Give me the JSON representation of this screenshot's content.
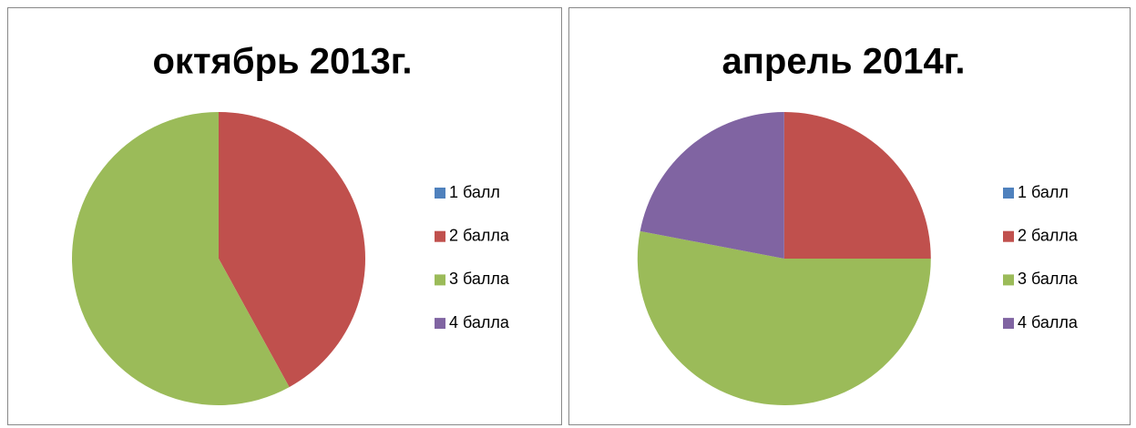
{
  "chart_data": [
    {
      "type": "pie",
      "title": "октябрь 2013г.",
      "categories": [
        "1 балл",
        "2 балла",
        "3 балла",
        "4 балла"
      ],
      "values": [
        0,
        42,
        58,
        0
      ],
      "colors": [
        "#4f81bd",
        "#c0504d",
        "#9bbb59",
        "#8064a2"
      ],
      "legend": "right"
    },
    {
      "type": "pie",
      "title": "апрель 2014г.",
      "categories": [
        "1 балл",
        "2 балла",
        "3 балла",
        "4 балла"
      ],
      "values": [
        0,
        25,
        53,
        22
      ],
      "colors": [
        "#4f81bd",
        "#c0504d",
        "#9bbb59",
        "#8064a2"
      ],
      "legend": "right"
    }
  ]
}
